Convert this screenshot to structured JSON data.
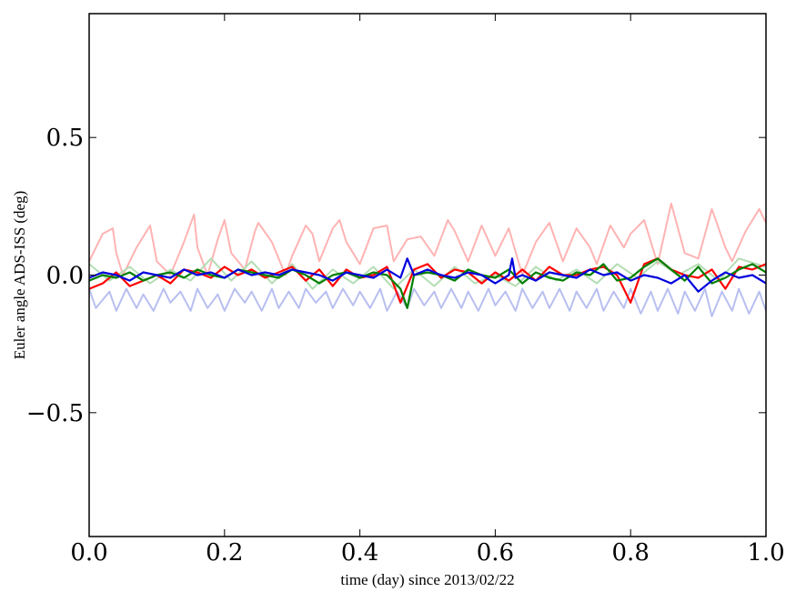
{
  "chart_data": {
    "type": "line",
    "title": "",
    "xlabel": "time (day) since 2013/02/22",
    "ylabel": "Euler angle ADS-ISS (deg)",
    "xlim": [
      0.0,
      1.0
    ],
    "ylim": [
      -0.95,
      0.95
    ],
    "grid": false,
    "legend": "none",
    "x_ticks": [
      0.0,
      0.2,
      0.4,
      0.6,
      0.8,
      1.0
    ],
    "x_tick_labels": [
      "0.0",
      "0.2",
      "0.4",
      "0.6",
      "0.8",
      "1.0"
    ],
    "y_ticks": [
      0.5,
      0.0,
      -0.5
    ],
    "y_tick_labels": [
      "0.5",
      "0.0",
      "−0.5"
    ],
    "series": [
      {
        "color": "#ffb3b3",
        "x": [
          0.0,
          0.02,
          0.035,
          0.04,
          0.05,
          0.07,
          0.09,
          0.1,
          0.12,
          0.14,
          0.155,
          0.16,
          0.175,
          0.19,
          0.2,
          0.21,
          0.23,
          0.245,
          0.25,
          0.27,
          0.29,
          0.3,
          0.32,
          0.33,
          0.34,
          0.36,
          0.37,
          0.38,
          0.4,
          0.42,
          0.44,
          0.45,
          0.47,
          0.49,
          0.51,
          0.53,
          0.54,
          0.56,
          0.58,
          0.6,
          0.62,
          0.64,
          0.66,
          0.68,
          0.7,
          0.72,
          0.74,
          0.75,
          0.77,
          0.79,
          0.8,
          0.82,
          0.84,
          0.86,
          0.88,
          0.9,
          0.92,
          0.94,
          0.95,
          0.97,
          0.99,
          1.0
        ],
        "y": [
          0.05,
          0.15,
          0.17,
          0.08,
          0.0,
          0.1,
          0.18,
          0.05,
          0.0,
          0.12,
          0.22,
          0.1,
          0.0,
          0.13,
          0.2,
          0.08,
          0.02,
          0.16,
          0.19,
          0.12,
          0.0,
          0.07,
          0.18,
          0.15,
          0.05,
          0.17,
          0.2,
          0.12,
          0.04,
          0.17,
          0.18,
          0.05,
          0.13,
          0.14,
          0.07,
          0.2,
          0.16,
          0.05,
          0.18,
          0.07,
          0.17,
          0.0,
          0.12,
          0.19,
          0.05,
          0.17,
          0.1,
          0.04,
          0.18,
          0.1,
          0.15,
          0.2,
          0.04,
          0.26,
          0.08,
          0.06,
          0.24,
          0.1,
          0.05,
          0.16,
          0.24,
          0.19
        ]
      },
      {
        "color": "#b3ddb3",
        "x": [
          0.0,
          0.03,
          0.06,
          0.09,
          0.12,
          0.15,
          0.18,
          0.21,
          0.24,
          0.27,
          0.3,
          0.33,
          0.36,
          0.39,
          0.42,
          0.45,
          0.48,
          0.51,
          0.54,
          0.57,
          0.6,
          0.63,
          0.66,
          0.69,
          0.72,
          0.75,
          0.78,
          0.81,
          0.84,
          0.87,
          0.9,
          0.93,
          0.96,
          1.0
        ],
        "y": [
          0.04,
          -0.02,
          0.03,
          -0.03,
          0.02,
          -0.02,
          0.06,
          -0.02,
          0.05,
          -0.03,
          0.04,
          -0.05,
          0.02,
          -0.03,
          0.03,
          -0.05,
          0.02,
          -0.04,
          0.03,
          -0.03,
          0.0,
          -0.04,
          0.03,
          -0.02,
          0.02,
          -0.03,
          0.04,
          -0.01,
          0.05,
          0.0,
          0.04,
          -0.02,
          0.06,
          0.03
        ]
      },
      {
        "color": "#b8bff0",
        "x": [
          0.0,
          0.01,
          0.03,
          0.04,
          0.055,
          0.07,
          0.08,
          0.095,
          0.11,
          0.12,
          0.135,
          0.15,
          0.16,
          0.175,
          0.19,
          0.2,
          0.215,
          0.23,
          0.24,
          0.255,
          0.27,
          0.28,
          0.295,
          0.31,
          0.32,
          0.335,
          0.35,
          0.36,
          0.375,
          0.39,
          0.4,
          0.415,
          0.43,
          0.44,
          0.455,
          0.47,
          0.48,
          0.495,
          0.51,
          0.52,
          0.535,
          0.55,
          0.56,
          0.575,
          0.59,
          0.6,
          0.615,
          0.63,
          0.64,
          0.655,
          0.67,
          0.68,
          0.695,
          0.71,
          0.72,
          0.735,
          0.75,
          0.76,
          0.775,
          0.79,
          0.8,
          0.815,
          0.83,
          0.84,
          0.855,
          0.87,
          0.88,
          0.895,
          0.91,
          0.92,
          0.935,
          0.95,
          0.96,
          0.975,
          0.99,
          1.0
        ],
        "y": [
          -0.05,
          -0.12,
          -0.06,
          -0.13,
          -0.05,
          -0.12,
          -0.07,
          -0.13,
          -0.05,
          -0.1,
          -0.06,
          -0.13,
          -0.05,
          -0.12,
          -0.07,
          -0.13,
          -0.05,
          -0.1,
          -0.06,
          -0.13,
          -0.05,
          -0.12,
          -0.06,
          -0.12,
          -0.05,
          -0.1,
          -0.06,
          -0.12,
          -0.05,
          -0.11,
          -0.06,
          -0.12,
          -0.05,
          -0.13,
          -0.06,
          -0.12,
          -0.05,
          -0.11,
          -0.06,
          -0.12,
          -0.05,
          -0.12,
          -0.06,
          -0.13,
          -0.05,
          -0.11,
          -0.06,
          -0.13,
          -0.05,
          -0.12,
          -0.06,
          -0.12,
          -0.05,
          -0.13,
          -0.06,
          -0.12,
          -0.05,
          -0.13,
          -0.06,
          -0.12,
          -0.05,
          -0.14,
          -0.06,
          -0.13,
          -0.05,
          -0.14,
          -0.06,
          -0.13,
          -0.05,
          -0.15,
          -0.06,
          -0.13,
          -0.05,
          -0.14,
          -0.06,
          -0.13
        ]
      },
      {
        "color": "#ff0000",
        "x": [
          0.0,
          0.02,
          0.04,
          0.06,
          0.08,
          0.1,
          0.12,
          0.14,
          0.16,
          0.18,
          0.2,
          0.22,
          0.24,
          0.26,
          0.28,
          0.3,
          0.32,
          0.34,
          0.36,
          0.38,
          0.4,
          0.42,
          0.44,
          0.46,
          0.48,
          0.5,
          0.52,
          0.54,
          0.56,
          0.58,
          0.6,
          0.62,
          0.64,
          0.66,
          0.68,
          0.7,
          0.72,
          0.74,
          0.76,
          0.78,
          0.8,
          0.82,
          0.84,
          0.86,
          0.88,
          0.9,
          0.92,
          0.94,
          0.96,
          0.98,
          1.0
        ],
        "y": [
          -0.05,
          -0.03,
          0.01,
          -0.04,
          -0.02,
          0.0,
          -0.03,
          0.02,
          0.01,
          -0.01,
          0.03,
          0.0,
          0.02,
          -0.01,
          0.01,
          0.03,
          -0.02,
          0.02,
          -0.04,
          0.02,
          -0.01,
          0.0,
          0.03,
          -0.1,
          0.02,
          0.04,
          -0.01,
          0.02,
          0.01,
          -0.03,
          0.01,
          -0.02,
          0.02,
          -0.02,
          0.03,
          0.0,
          0.0,
          0.02,
          0.03,
          0.0,
          -0.1,
          0.04,
          0.06,
          0.02,
          0.0,
          -0.01,
          0.02,
          -0.05,
          0.03,
          0.02,
          0.04
        ]
      },
      {
        "color": "#008000",
        "x": [
          0.0,
          0.02,
          0.04,
          0.06,
          0.08,
          0.1,
          0.12,
          0.14,
          0.16,
          0.18,
          0.2,
          0.22,
          0.24,
          0.26,
          0.28,
          0.3,
          0.32,
          0.34,
          0.36,
          0.38,
          0.4,
          0.42,
          0.44,
          0.46,
          0.47,
          0.48,
          0.5,
          0.52,
          0.54,
          0.56,
          0.58,
          0.6,
          0.62,
          0.64,
          0.66,
          0.68,
          0.7,
          0.72,
          0.74,
          0.76,
          0.78,
          0.8,
          0.82,
          0.84,
          0.86,
          0.88,
          0.9,
          0.92,
          0.94,
          0.96,
          0.98,
          1.0
        ],
        "y": [
          -0.02,
          0.0,
          -0.01,
          0.01,
          -0.02,
          0.0,
          0.01,
          -0.01,
          0.02,
          0.0,
          -0.01,
          0.02,
          0.01,
          0.0,
          -0.01,
          0.02,
          0.0,
          -0.03,
          0.0,
          0.01,
          -0.01,
          0.01,
          0.0,
          -0.05,
          -0.12,
          0.0,
          0.01,
          0.0,
          -0.02,
          0.02,
          0.0,
          -0.01,
          0.02,
          -0.03,
          0.01,
          -0.01,
          -0.02,
          0.01,
          0.0,
          0.04,
          -0.02,
          -0.01,
          0.03,
          0.06,
          0.02,
          -0.02,
          0.03,
          -0.03,
          -0.01,
          0.02,
          0.04,
          0.01
        ]
      },
      {
        "color": "#0000dd",
        "x": [
          0.0,
          0.02,
          0.04,
          0.06,
          0.08,
          0.1,
          0.12,
          0.14,
          0.16,
          0.18,
          0.2,
          0.22,
          0.24,
          0.26,
          0.28,
          0.3,
          0.32,
          0.34,
          0.36,
          0.38,
          0.4,
          0.42,
          0.44,
          0.46,
          0.47,
          0.48,
          0.5,
          0.52,
          0.54,
          0.56,
          0.58,
          0.6,
          0.62,
          0.625,
          0.63,
          0.64,
          0.66,
          0.68,
          0.7,
          0.72,
          0.74,
          0.76,
          0.78,
          0.8,
          0.82,
          0.84,
          0.86,
          0.88,
          0.9,
          0.92,
          0.94,
          0.96,
          0.98,
          1.0
        ],
        "y": [
          -0.01,
          0.01,
          0.0,
          -0.02,
          0.01,
          0.0,
          -0.01,
          0.02,
          0.0,
          0.01,
          -0.01,
          0.02,
          0.0,
          0.01,
          0.0,
          0.02,
          0.01,
          0.0,
          -0.02,
          0.01,
          0.0,
          -0.01,
          0.02,
          -0.01,
          0.06,
          0.0,
          0.02,
          0.0,
          -0.01,
          0.01,
          0.0,
          -0.03,
          0.0,
          0.06,
          -0.01,
          0.0,
          -0.02,
          0.01,
          0.0,
          -0.01,
          0.02,
          0.0,
          0.01,
          -0.02,
          0.0,
          -0.01,
          -0.03,
          0.0,
          -0.06,
          -0.02,
          0.01,
          -0.01,
          0.0,
          -0.03
        ]
      }
    ]
  }
}
